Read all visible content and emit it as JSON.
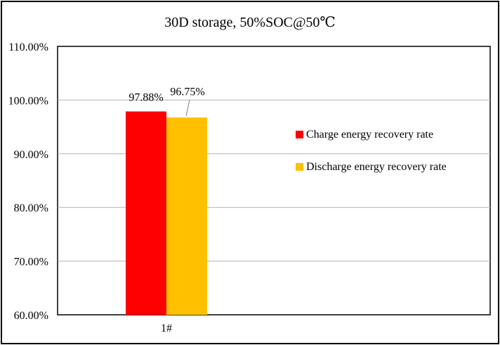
{
  "chart_data": {
    "type": "bar",
    "title": "30D storage, 50%SOC@50℃",
    "categories": [
      "1#"
    ],
    "series": [
      {
        "name": "Charge energy recovery rate",
        "values": [
          97.88
        ],
        "value_labels": [
          "97.88%"
        ],
        "color": "#ff0000"
      },
      {
        "name": "Discharge energy recovery rate",
        "values": [
          96.75
        ],
        "value_labels": [
          "96.75%"
        ],
        "color": "#ffc000"
      }
    ],
    "ylim": [
      60,
      110
    ],
    "yticks": [
      60,
      70,
      80,
      90,
      100,
      110
    ],
    "ytick_labels": [
      "60.00%",
      "70.00%",
      "80.00%",
      "90.00%",
      "100.00%",
      "110.00%"
    ],
    "xlabel": "",
    "ylabel": "",
    "grid": true,
    "legend_position": "right"
  }
}
